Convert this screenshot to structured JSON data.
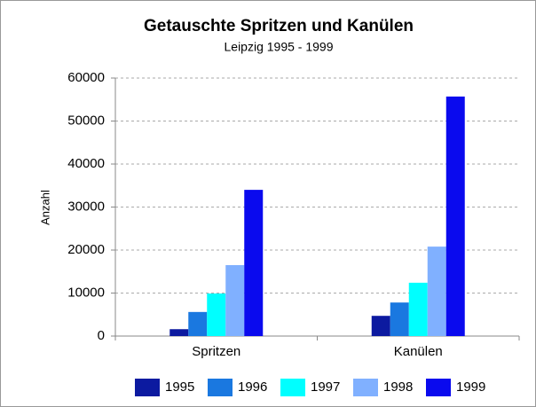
{
  "chart_data": {
    "type": "bar",
    "title": "Getauschte Spritzen und Kanülen",
    "subtitle": "Leipzig 1995 - 1999",
    "y_label": "Anzahl",
    "categories": [
      "Spritzen",
      "Kanülen"
    ],
    "series": [
      {
        "name": "1995",
        "color": "#0c1aa0",
        "values": [
          1600,
          4700
        ]
      },
      {
        "name": "1996",
        "color": "#1a78e0",
        "values": [
          5600,
          7800
        ]
      },
      {
        "name": "1997",
        "color": "#00ffff",
        "values": [
          9900,
          12400
        ]
      },
      {
        "name": "1998",
        "color": "#80b0ff",
        "values": [
          16500,
          20800
        ]
      },
      {
        "name": "1999",
        "color": "#0a0aee",
        "values": [
          34000,
          55700
        ]
      }
    ],
    "ylim": [
      0,
      60000
    ],
    "yticks": [
      0,
      10000,
      20000,
      30000,
      40000,
      50000,
      60000
    ],
    "grid": true,
    "legend": "bottom"
  }
}
